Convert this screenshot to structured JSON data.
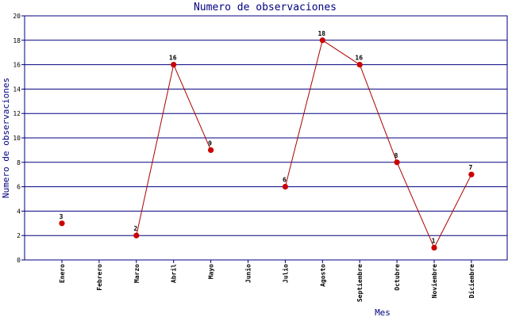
{
  "chart_data": {
    "type": "line",
    "title": "Numero de observaciones",
    "xlabel": "Mes",
    "ylabel": "Numero de observaciones",
    "categories": [
      "Enero",
      "Febrero",
      "Marzo",
      "Abril",
      "Mayo",
      "Junio",
      "Julio",
      "Agosto",
      "Septiembre",
      "Octubre",
      "Noviembre",
      "Diciembre"
    ],
    "series": [
      {
        "values": [
          3,
          null,
          2,
          16,
          9,
          null,
          6,
          18,
          16,
          8,
          1,
          7
        ]
      }
    ],
    "ylim": [
      0,
      20
    ],
    "yticks": [
      0,
      2,
      4,
      6,
      8,
      10,
      12,
      14,
      16,
      18,
      20
    ],
    "grid": true,
    "colors": {
      "line": "#aa0000",
      "marker": "#cc0000",
      "grid": "#000080",
      "axis": "#000080",
      "text": "#000080",
      "label": "#000000"
    }
  }
}
